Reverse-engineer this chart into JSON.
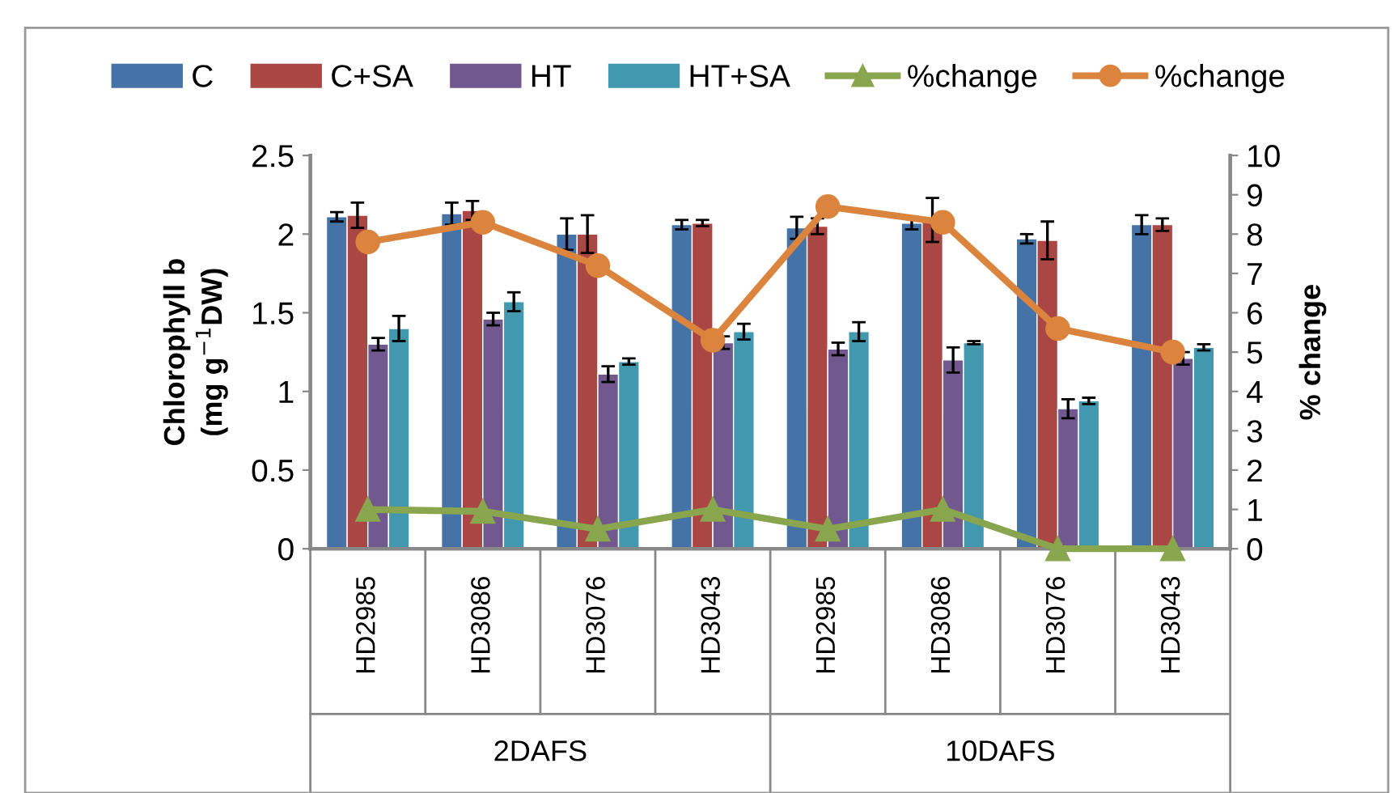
{
  "chart_data": {
    "type": "bar",
    "ylabel": "Chlorophyll b\n(mg g$^{−1}$DW)",
    "y2label": "% change",
    "categories": [
      "HD2985",
      "HD3086",
      "HD3076",
      "HD3043",
      "HD2985",
      "HD3086",
      "HD3076",
      "HD3043"
    ],
    "annotations": [
      "2DAFS",
      "10DAFS"
    ],
    "series": [
      {
        "name": "C",
        "color": "#4572a7",
        "values": [
          2.11,
          2.13,
          2.0,
          2.06,
          2.04,
          2.07,
          1.97,
          2.06
        ],
        "errors": [
          0.03,
          0.07,
          0.1,
          0.03,
          0.07,
          0.04,
          0.03,
          0.06
        ]
      },
      {
        "name": "C+SA",
        "color": "#aa4643",
        "values": [
          2.12,
          2.15,
          2.0,
          2.07,
          2.05,
          2.09,
          1.96,
          2.06
        ],
        "errors": [
          0.08,
          0.06,
          0.12,
          0.02,
          0.05,
          0.14,
          0.12,
          0.04
        ]
      },
      {
        "name": "HT",
        "color": "#71588f",
        "values": [
          1.3,
          1.46,
          1.11,
          1.31,
          1.27,
          1.2,
          0.89,
          1.21
        ],
        "errors": [
          0.04,
          0.04,
          0.05,
          0.04,
          0.04,
          0.08,
          0.06,
          0.04
        ]
      },
      {
        "name": "HT+SA",
        "color": "#4198af",
        "values": [
          1.4,
          1.57,
          1.19,
          1.38,
          1.38,
          1.31,
          0.94,
          1.28
        ],
        "errors": [
          0.08,
          0.06,
          0.02,
          0.05,
          0.06,
          0.01,
          0.02,
          0.02
        ]
      },
      {
        "name": "%change",
        "type": "line",
        "axis": "y2",
        "marker": "triangle",
        "color": "#89a54e",
        "values": [
          1.0,
          0.95,
          0.5,
          1.0,
          0.5,
          1.0,
          0,
          0
        ]
      },
      {
        "name": "%change",
        "type": "line",
        "axis": "y2",
        "marker": "circle",
        "color": "#db843d",
        "values": [
          7.8,
          8.3,
          7.2,
          5.3,
          8.7,
          8.3,
          5.6,
          5.0
        ]
      }
    ],
    "ylim": [
      0,
      2.5
    ],
    "yticks": [
      0,
      0.5,
      1,
      1.5,
      2,
      2.5
    ],
    "y2lim": [
      0,
      10
    ],
    "y2ticks": [
      0,
      1,
      2,
      3,
      4,
      5,
      6,
      7,
      8,
      9,
      10
    ],
    "grid": false,
    "legend": "top"
  }
}
